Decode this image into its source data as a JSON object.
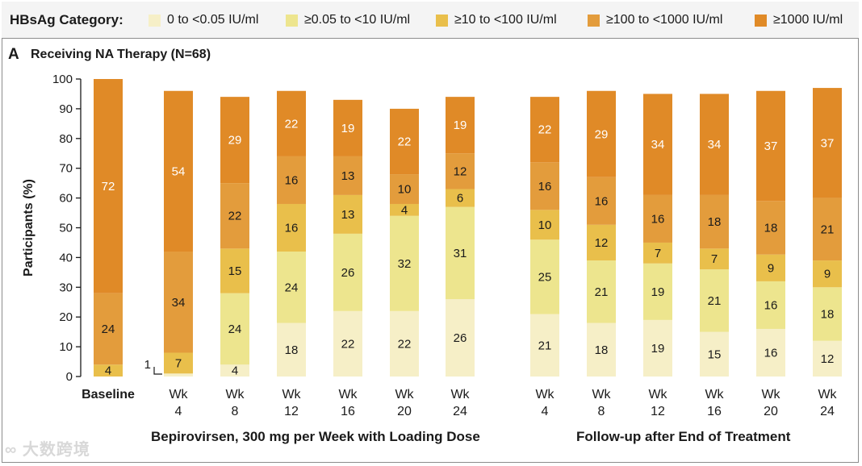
{
  "legend": {
    "title": "HBsAg Category:",
    "items": [
      {
        "label": "0 to <0.05 IU/ml",
        "color": "#f6efc7"
      },
      {
        "label": "≥0.05 to <10 IU/ml",
        "color": "#ede58e"
      },
      {
        "label": "≥10 to <100 IU/ml",
        "color": "#e9bf4b"
      },
      {
        "label": "≥100 to <1000 IU/ml",
        "color": "#e39c3c"
      },
      {
        "label": "≥1000 IU/ml",
        "color": "#e08a27"
      }
    ]
  },
  "panel": {
    "letter": "A",
    "title": "Receiving NA Therapy (N=68)"
  },
  "groups": {
    "treatment": "Bepirovirsen, 300 mg per Week with Loading Dose",
    "followup": "Follow-up after End of Treatment"
  },
  "watermark": "大数跨境",
  "chart_data": {
    "type": "stacked-bar",
    "ylabel": "Participants (%)",
    "ylim": [
      0,
      100
    ],
    "yticks": [
      0,
      10,
      20,
      30,
      40,
      50,
      60,
      70,
      80,
      90,
      100
    ],
    "categories": [
      {
        "line1": "Baseline",
        "line2": ""
      },
      {
        "line1": "Wk",
        "line2": "4"
      },
      {
        "line1": "Wk",
        "line2": "8"
      },
      {
        "line1": "Wk",
        "line2": "12"
      },
      {
        "line1": "Wk",
        "line2": "16"
      },
      {
        "line1": "Wk",
        "line2": "20"
      },
      {
        "line1": "Wk",
        "line2": "24"
      },
      {
        "line1": "Wk",
        "line2": "4"
      },
      {
        "line1": "Wk",
        "line2": "8"
      },
      {
        "line1": "Wk",
        "line2": "12"
      },
      {
        "line1": "Wk",
        "line2": "16"
      },
      {
        "line1": "Wk",
        "line2": "20"
      },
      {
        "line1": "Wk",
        "line2": "24"
      }
    ],
    "series": [
      {
        "name": "0 to <0.05 IU/ml",
        "values": [
          0,
          1,
          4,
          18,
          22,
          22,
          26,
          21,
          18,
          19,
          15,
          16,
          12
        ]
      },
      {
        "name": "≥0.05 to <10 IU/ml",
        "values": [
          0,
          0,
          24,
          24,
          26,
          32,
          31,
          25,
          21,
          19,
          21,
          16,
          18
        ]
      },
      {
        "name": "≥10 to <100 IU/ml",
        "values": [
          4,
          7,
          15,
          16,
          13,
          4,
          6,
          10,
          12,
          7,
          7,
          9,
          9
        ]
      },
      {
        "name": "≥100 to <1000 IU/ml",
        "values": [
          24,
          34,
          22,
          16,
          13,
          10,
          12,
          16,
          16,
          16,
          18,
          18,
          21
        ]
      },
      {
        "name": "≥1000 IU/ml",
        "values": [
          72,
          54,
          29,
          22,
          19,
          22,
          19,
          22,
          29,
          34,
          34,
          37,
          37
        ]
      }
    ]
  }
}
